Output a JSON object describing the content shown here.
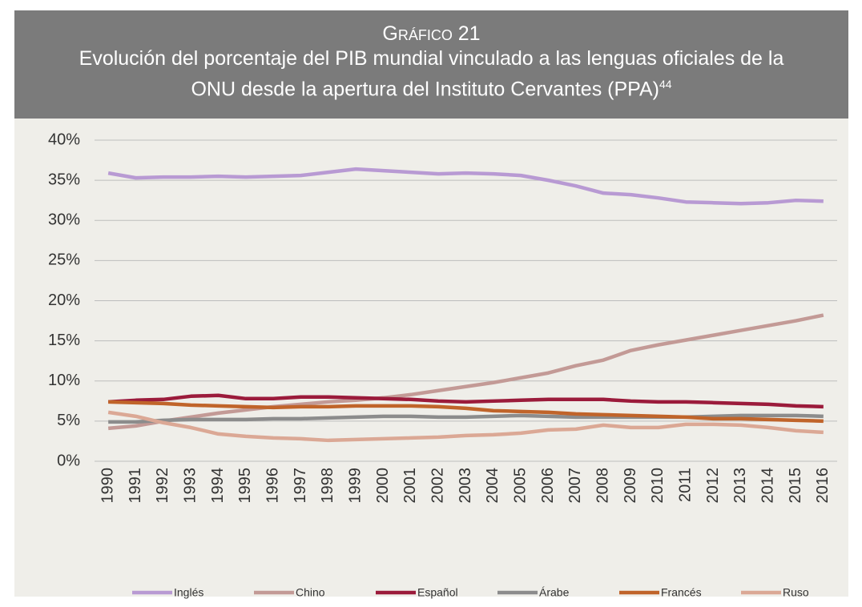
{
  "chart_data": {
    "type": "line",
    "kicker": "Gráfico 21",
    "title": "Evolución del porcentaje del PIB mundial vinculado a las lenguas oficiales de la ONU desde la apertura del Instituto Cervantes (PPA)",
    "title_note": "44",
    "categories": [
      "1990",
      "1991",
      "1992",
      "1993",
      "1994",
      "1995",
      "1996",
      "1997",
      "1998",
      "1999",
      "2000",
      "2001",
      "2002",
      "2003",
      "2004",
      "2005",
      "2006",
      "2007",
      "2008",
      "2009",
      "2010",
      "2011",
      "2012",
      "2013",
      "2014",
      "2015",
      "2016"
    ],
    "ylim": [
      0,
      40
    ],
    "yticks": [
      {
        "value": 0,
        "label": "0%"
      },
      {
        "value": 5,
        "label": "5%"
      },
      {
        "value": 10,
        "label": "10%"
      },
      {
        "value": 15,
        "label": "15%"
      },
      {
        "value": 20,
        "label": "20%"
      },
      {
        "value": 25,
        "label": "25%"
      },
      {
        "value": 30,
        "label": "30%"
      },
      {
        "value": 35,
        "label": "35%"
      },
      {
        "value": 40,
        "label": "40%"
      }
    ],
    "grid": true,
    "legend": "bottom",
    "series": [
      {
        "name": "Inglés",
        "color": "#b89ad3",
        "values": [
          35.9,
          35.3,
          35.4,
          35.4,
          35.5,
          35.4,
          35.5,
          35.6,
          36.0,
          36.4,
          36.2,
          36.0,
          35.8,
          35.9,
          35.8,
          35.6,
          35.0,
          34.3,
          33.4,
          33.2,
          32.8,
          32.3,
          32.2,
          32.1,
          32.2,
          32.5,
          32.4
        ]
      },
      {
        "name": "Chino",
        "color": "#c39a96",
        "values": [
          4.1,
          4.4,
          5.0,
          5.5,
          6.0,
          6.4,
          6.8,
          7.1,
          7.4,
          7.6,
          7.9,
          8.3,
          8.8,
          9.3,
          9.8,
          10.4,
          11.0,
          11.9,
          12.6,
          13.8,
          14.5,
          15.1,
          15.7,
          16.3,
          16.9,
          17.5,
          18.2
        ]
      },
      {
        "name": "Español",
        "color": "#9b1b3b",
        "values": [
          7.4,
          7.6,
          7.7,
          8.1,
          8.2,
          7.8,
          7.8,
          8.0,
          8.0,
          7.9,
          7.8,
          7.7,
          7.5,
          7.4,
          7.5,
          7.6,
          7.7,
          7.7,
          7.7,
          7.5,
          7.4,
          7.4,
          7.3,
          7.2,
          7.1,
          6.9,
          6.8
        ]
      },
      {
        "name": "Árabe",
        "color": "#8c8c8c",
        "values": [
          4.9,
          4.9,
          5.1,
          5.2,
          5.2,
          5.2,
          5.3,
          5.3,
          5.4,
          5.5,
          5.6,
          5.6,
          5.5,
          5.5,
          5.6,
          5.7,
          5.6,
          5.5,
          5.5,
          5.5,
          5.5,
          5.5,
          5.6,
          5.7,
          5.7,
          5.7,
          5.6
        ]
      },
      {
        "name": "Francés",
        "color": "#c0642a",
        "values": [
          7.4,
          7.3,
          7.2,
          7.0,
          6.9,
          6.8,
          6.7,
          6.8,
          6.8,
          6.9,
          6.9,
          6.9,
          6.8,
          6.6,
          6.3,
          6.2,
          6.1,
          5.9,
          5.8,
          5.7,
          5.6,
          5.5,
          5.3,
          5.3,
          5.2,
          5.1,
          5.0
        ]
      },
      {
        "name": "Ruso",
        "color": "#dba895",
        "values": [
          6.1,
          5.6,
          4.8,
          4.2,
          3.4,
          3.1,
          2.9,
          2.8,
          2.6,
          2.7,
          2.8,
          2.9,
          3.0,
          3.2,
          3.3,
          3.5,
          3.9,
          4.0,
          4.5,
          4.2,
          4.2,
          4.6,
          4.6,
          4.5,
          4.2,
          3.8,
          3.6
        ]
      }
    ]
  }
}
